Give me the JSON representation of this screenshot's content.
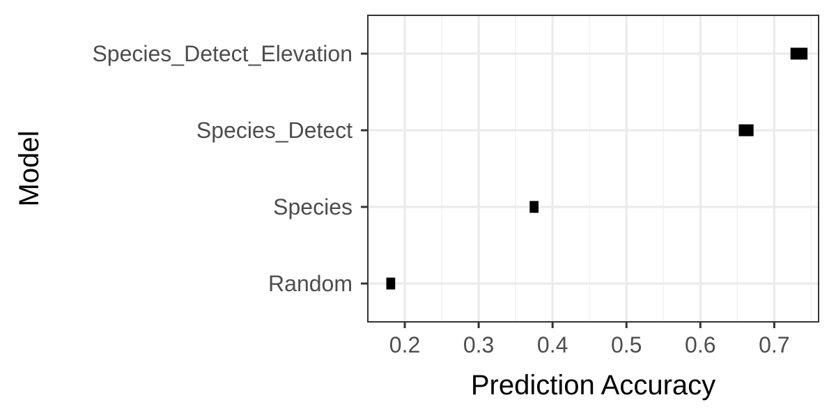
{
  "chart_data": {
    "type": "interval",
    "orientation": "horizontal",
    "xlabel": "Prediction Accuracy",
    "ylabel": "Model",
    "xlim": [
      0.15,
      0.76
    ],
    "x_ticks": [
      0.2,
      0.3,
      0.4,
      0.5,
      0.6,
      0.7
    ],
    "x_tick_labels": [
      "0.2",
      "0.3",
      "0.4",
      "0.5",
      "0.6",
      "0.7"
    ],
    "categories": [
      "Species_Detect_Elevation",
      "Species_Detect",
      "Species",
      "Random"
    ],
    "series": [
      {
        "intervals": [
          {
            "category": "Species_Detect_Elevation",
            "low": 0.722,
            "high": 0.745
          },
          {
            "category": "Species_Detect",
            "low": 0.652,
            "high": 0.672
          },
          {
            "category": "Species",
            "low": 0.369,
            "high": 0.381
          },
          {
            "category": "Random",
            "low": 0.175,
            "high": 0.187
          }
        ]
      }
    ],
    "grid": true,
    "theme": "bw",
    "colors": {
      "mark": "#000000",
      "grid_major": "#ebebeb",
      "grid_minor": "#f2f2f2",
      "panel_border": "#333333",
      "tick_text": "#4d4d4d",
      "title_text": "#000000"
    }
  }
}
